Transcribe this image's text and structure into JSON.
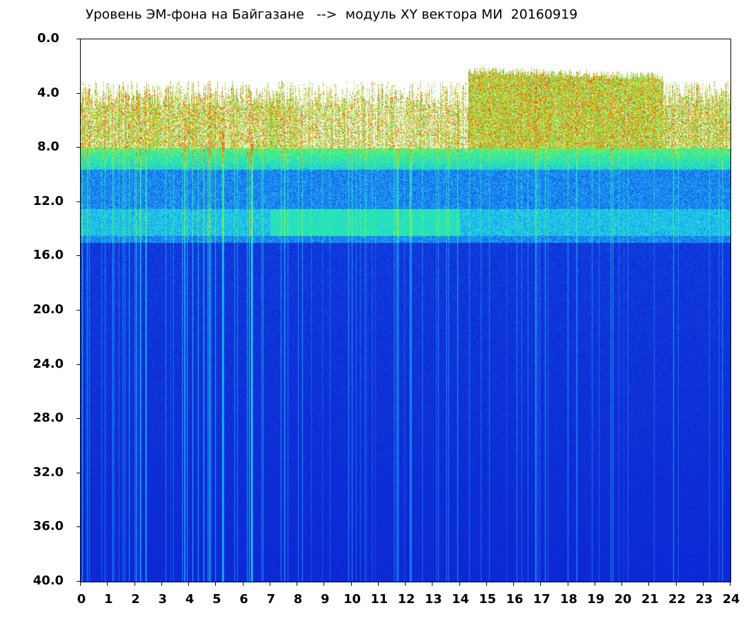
{
  "title": "Уровень ЭМ-фона на Байгазане   -->  модуль XY вектора МИ  20160919",
  "chart_data": {
    "type": "heatmap",
    "title": "Уровень ЭМ-фона на Байгазане   -->  модуль XY вектора МИ  20160919",
    "xlabel": "",
    "ylabel": "",
    "x_range": [
      0,
      24
    ],
    "y_range": [
      0,
      40
    ],
    "y_inverted": true,
    "x_ticks": [
      "0",
      "1",
      "2",
      "3",
      "4",
      "5",
      "6",
      "7",
      "8",
      "9",
      "10",
      "11",
      "12",
      "13",
      "14",
      "15",
      "16",
      "17",
      "18",
      "19",
      "20",
      "21",
      "22",
      "23",
      "24"
    ],
    "y_ticks": [
      "0.0",
      "4.0",
      "8.0",
      "12.0",
      "16.0",
      "20.0",
      "24.0",
      "28.0",
      "32.0",
      "36.0",
      "40.0"
    ],
    "grid": false,
    "colormap": [
      "#0a1ed0",
      "#1a6cf0",
      "#20d8f0",
      "#30f080",
      "#d8f020",
      "#ff3010"
    ],
    "bands": [
      {
        "y_from": 2.0,
        "y_to": 8.0,
        "level": "high (red/yellow/green)"
      },
      {
        "y_from": 8.0,
        "y_to": 9.5,
        "level": "medium (green/cyan)"
      },
      {
        "y_from": 9.5,
        "y_to": 15.0,
        "level": "medium-low (blue/cyan)"
      },
      {
        "y_from": 15.0,
        "y_to": 40.0,
        "level": "low (blue)"
      }
    ]
  }
}
